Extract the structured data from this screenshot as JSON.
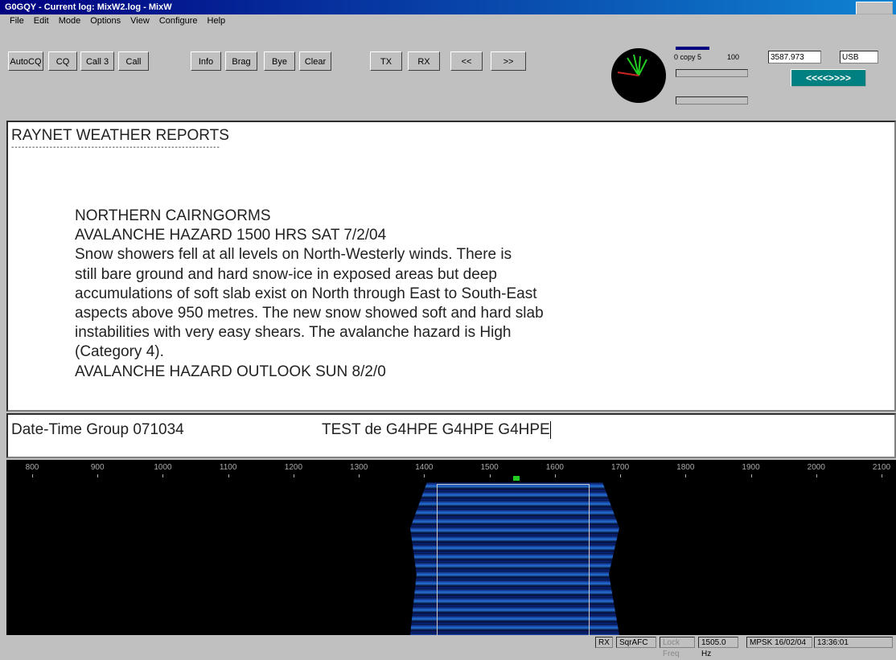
{
  "title_bar": {
    "title": "G0GQY - Current log: MixW2.log - MixW"
  },
  "menu": [
    "File",
    "Edit",
    "Mode",
    "Options",
    "View",
    "Configure",
    "Help"
  ],
  "toolbar": {
    "buttons": [
      "AutoCQ",
      "CQ",
      "Call 3",
      "Call",
      "Info",
      "Brag",
      "Bye",
      "Clear",
      "TX",
      "RX",
      "<<",
      ">>"
    ]
  },
  "rig": {
    "signal": "0 copy 5",
    "level": "100",
    "frequency": "3587.973",
    "mode": "USB",
    "tune": "<<<<>>>>"
  },
  "receive": {
    "heading": "RAYNET WEATHER REPORTS",
    "rule": "------------------------------------------------------------",
    "lines": [
      "NORTHERN CAIRNGORMS",
      "AVALANCHE HAZARD 1500 HRS SAT 7/2/04",
      "Snow showers fell at all levels on North-Westerly winds. There is",
      "still bare ground and hard snow-ice in exposed areas but deep",
      "accumulations of soft slab exist on North through East to South-East",
      "aspects above 950 metres. The new snow showed soft and hard slab",
      "instabilities with very easy shears. The avalanche hazard is High",
      "(Category 4).",
      "AVALANCHE HAZARD OUTLOOK SUN 8/2/0"
    ]
  },
  "transmit": {
    "group": "Date-Time Group 071034",
    "text": "TEST de G4HPE G4HPE G4HPE"
  },
  "waterfall": {
    "scale": [
      800,
      900,
      1000,
      1100,
      1200,
      1300,
      1400,
      1500,
      1600,
      1700,
      1800,
      1900,
      2000,
      2100
    ]
  },
  "status_bar": {
    "items": [
      "RX",
      "SqrAFC",
      "Lock Freq",
      "1505.0 Hz",
      "MPSK 16/02/04",
      "13:36:01"
    ]
  }
}
